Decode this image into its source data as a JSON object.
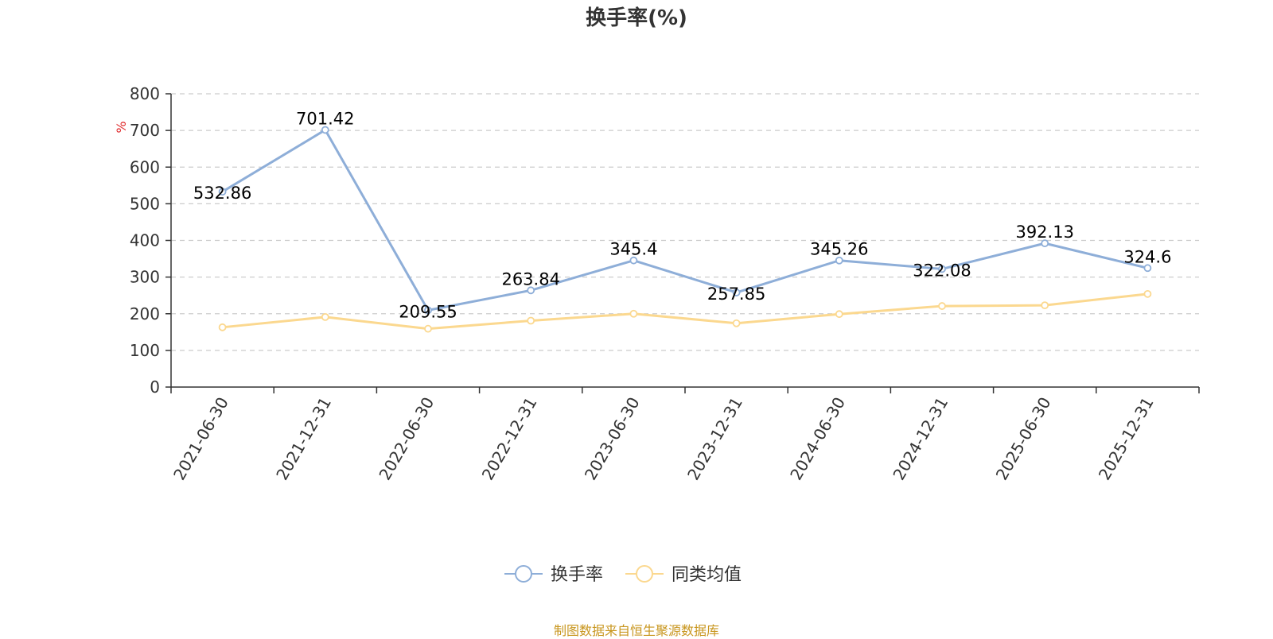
{
  "chart_data": {
    "type": "line",
    "title": "换手率(%)",
    "ylabel": "%",
    "xlabel": "",
    "ylim": [
      0,
      800
    ],
    "yticks": [
      0,
      100,
      200,
      300,
      400,
      500,
      600,
      700,
      800
    ],
    "grid": "horizontal dashed",
    "legend_position": "bottom-center",
    "categories": [
      "2021-06-30",
      "2021-12-31",
      "2022-06-30",
      "2022-12-31",
      "2023-06-30",
      "2023-12-31",
      "2024-06-30",
      "2024-12-31",
      "2025-06-30",
      "2025-12-31"
    ],
    "series": [
      {
        "name": "换手率",
        "color": "#8eaed8",
        "values": [
          532.86,
          701.42,
          209.55,
          263.84,
          345.4,
          257.85,
          345.26,
          322.08,
          392.13,
          324.6
        ],
        "labels": [
          "532.86",
          "701.42",
          "209.55",
          "263.84",
          "345.4",
          "257.85",
          "345.26",
          "322.08",
          "392.13",
          "324.6"
        ]
      },
      {
        "name": "同类均值",
        "color": "#fbd88f",
        "values": [
          163,
          191,
          159,
          181,
          200,
          174,
          199,
          221,
          223,
          254
        ]
      }
    ]
  },
  "source_note": "制图数据来自恒生聚源数据库"
}
